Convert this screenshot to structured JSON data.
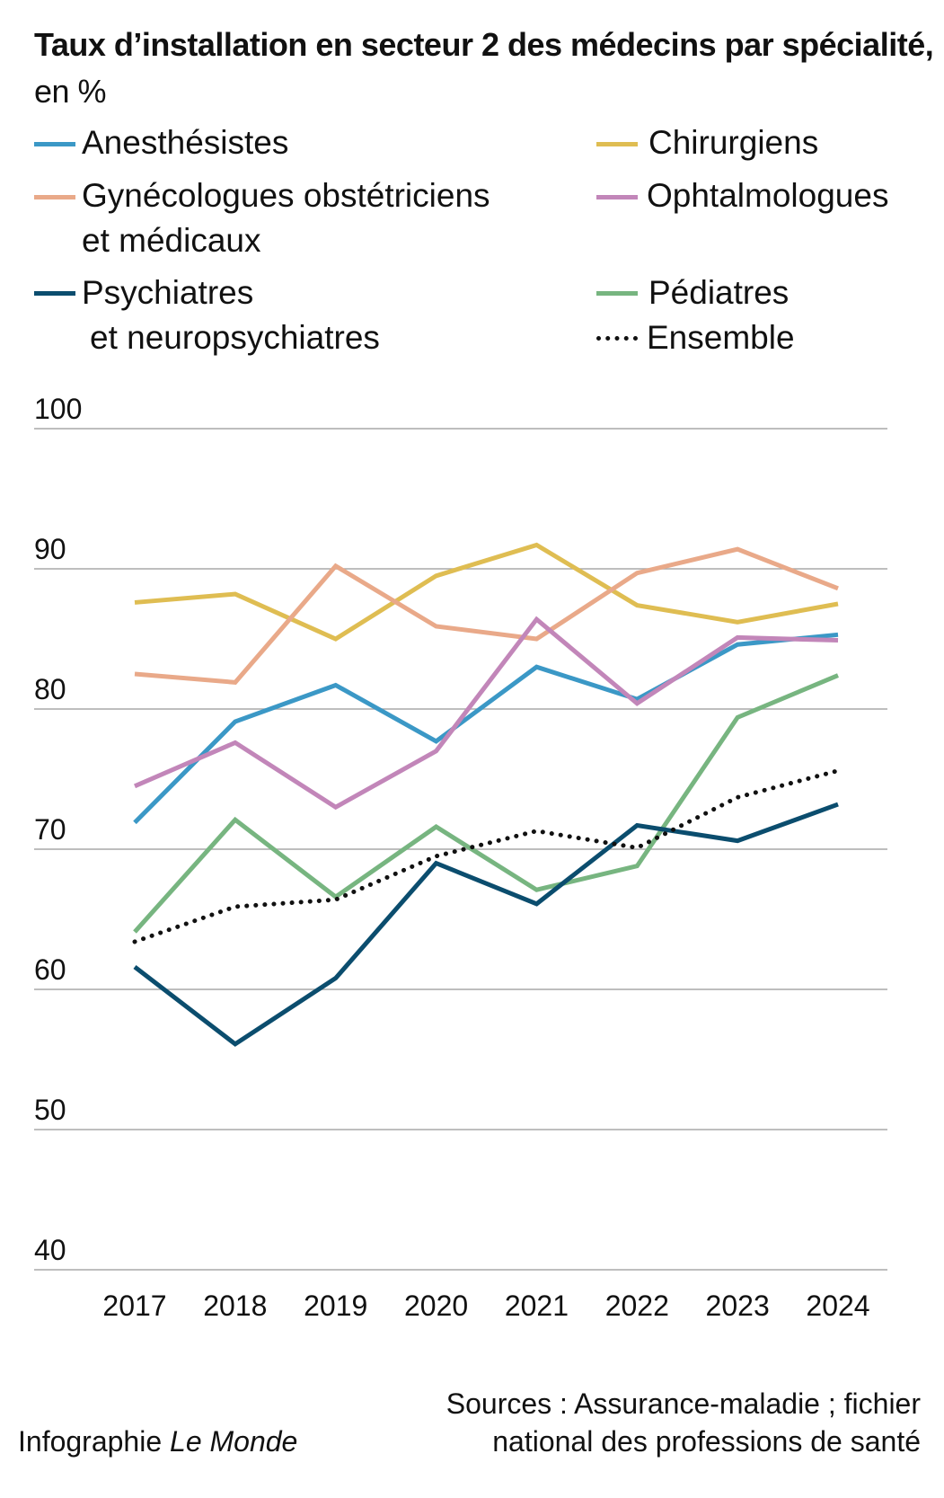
{
  "title": {
    "bold": "Taux d’installation en secteur 2 des médecins par spécialité,",
    "unit": " en %"
  },
  "legend": [
    {
      "label": "Anesthésistes",
      "color": "#3b98c6",
      "style": "solid"
    },
    {
      "label": "Chirurgiens",
      "color": "#dfbd52",
      "style": "solid"
    },
    {
      "label": "Gynécologues obstétriciens",
      "label2": "et médicaux",
      "color": "#e9a989",
      "style": "solid"
    },
    {
      "label": "Ophtalmologues",
      "color": "#c286b9",
      "style": "solid"
    },
    {
      "label": "Psychiatres",
      "label2": "et neuropsychiatres",
      "color": "#0b4d6e",
      "style": "solid"
    },
    {
      "label": "Pédiatres",
      "color": "#77b580",
      "style": "solid"
    },
    {
      "label": "Ensemble",
      "color": "#111111",
      "style": "dotted"
    }
  ],
  "chart_data": {
    "type": "line",
    "x": [
      "2017",
      "2018",
      "2019",
      "2020",
      "2021",
      "2022",
      "2023",
      "2024"
    ],
    "ylim": [
      40,
      100
    ],
    "yticks": [
      "40",
      "50",
      "60",
      "70",
      "80",
      "90",
      "100"
    ],
    "grid": true,
    "legend_position": "top",
    "series": [
      {
        "name": "Anesthésistes",
        "color": "#3b98c6",
        "values": [
          71.9,
          79.1,
          81.7,
          77.7,
          83.0,
          80.7,
          84.6,
          85.3
        ]
      },
      {
        "name": "Chirurgiens",
        "color": "#dfbd52",
        "values": [
          87.6,
          88.2,
          85.0,
          89.5,
          91.7,
          87.4,
          86.2,
          87.5
        ]
      },
      {
        "name": "Gynécologues obstétriciens et médicaux",
        "color": "#e9a989",
        "values": [
          82.5,
          81.9,
          90.2,
          85.9,
          85.0,
          89.7,
          91.4,
          88.6
        ]
      },
      {
        "name": "Ophtalmologues",
        "color": "#c286b9",
        "values": [
          74.5,
          77.6,
          73.0,
          77.0,
          86.4,
          80.4,
          85.1,
          84.9
        ]
      },
      {
        "name": "Pédiatres",
        "color": "#77b580",
        "values": [
          64.1,
          72.1,
          66.6,
          71.6,
          67.1,
          68.8,
          79.4,
          82.4
        ]
      },
      {
        "name": "Psychiatres et neuropsychiatres",
        "color": "#0b4d6e",
        "values": [
          61.6,
          56.1,
          60.8,
          69.0,
          66.1,
          71.7,
          70.6,
          73.2
        ]
      },
      {
        "name": "Ensemble",
        "color": "#111111",
        "dotted": true,
        "values": [
          63.4,
          65.9,
          66.4,
          69.5,
          71.3,
          70.1,
          73.7,
          75.6
        ]
      }
    ]
  },
  "footer": {
    "credit_prefix": "Infographie ",
    "credit_brand": "Le Monde",
    "source_line1": "Sources : Assurance-maladie ; fichier",
    "source_line2": "national des professions de santé"
  }
}
